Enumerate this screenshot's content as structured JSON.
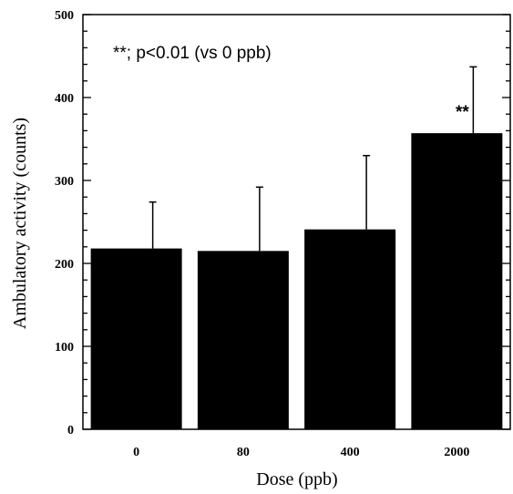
{
  "chart_data": {
    "type": "bar",
    "categories": [
      "0",
      "80",
      "400",
      "2000"
    ],
    "values": [
      218,
      215,
      241,
      357
    ],
    "error_upper": [
      274,
      292,
      330,
      437
    ],
    "significance": [
      "",
      "",
      "",
      "**"
    ],
    "xlabel": "Dose (ppb)",
    "ylabel": "Ambulatory activity (counts)",
    "ylim": [
      0,
      500
    ],
    "yticks": [
      "0",
      "100",
      "200",
      "300",
      "400",
      "500"
    ],
    "annotation": "**; p<0.01 (vs 0 ppb)",
    "bar_color": "#000000",
    "grid": false
  }
}
